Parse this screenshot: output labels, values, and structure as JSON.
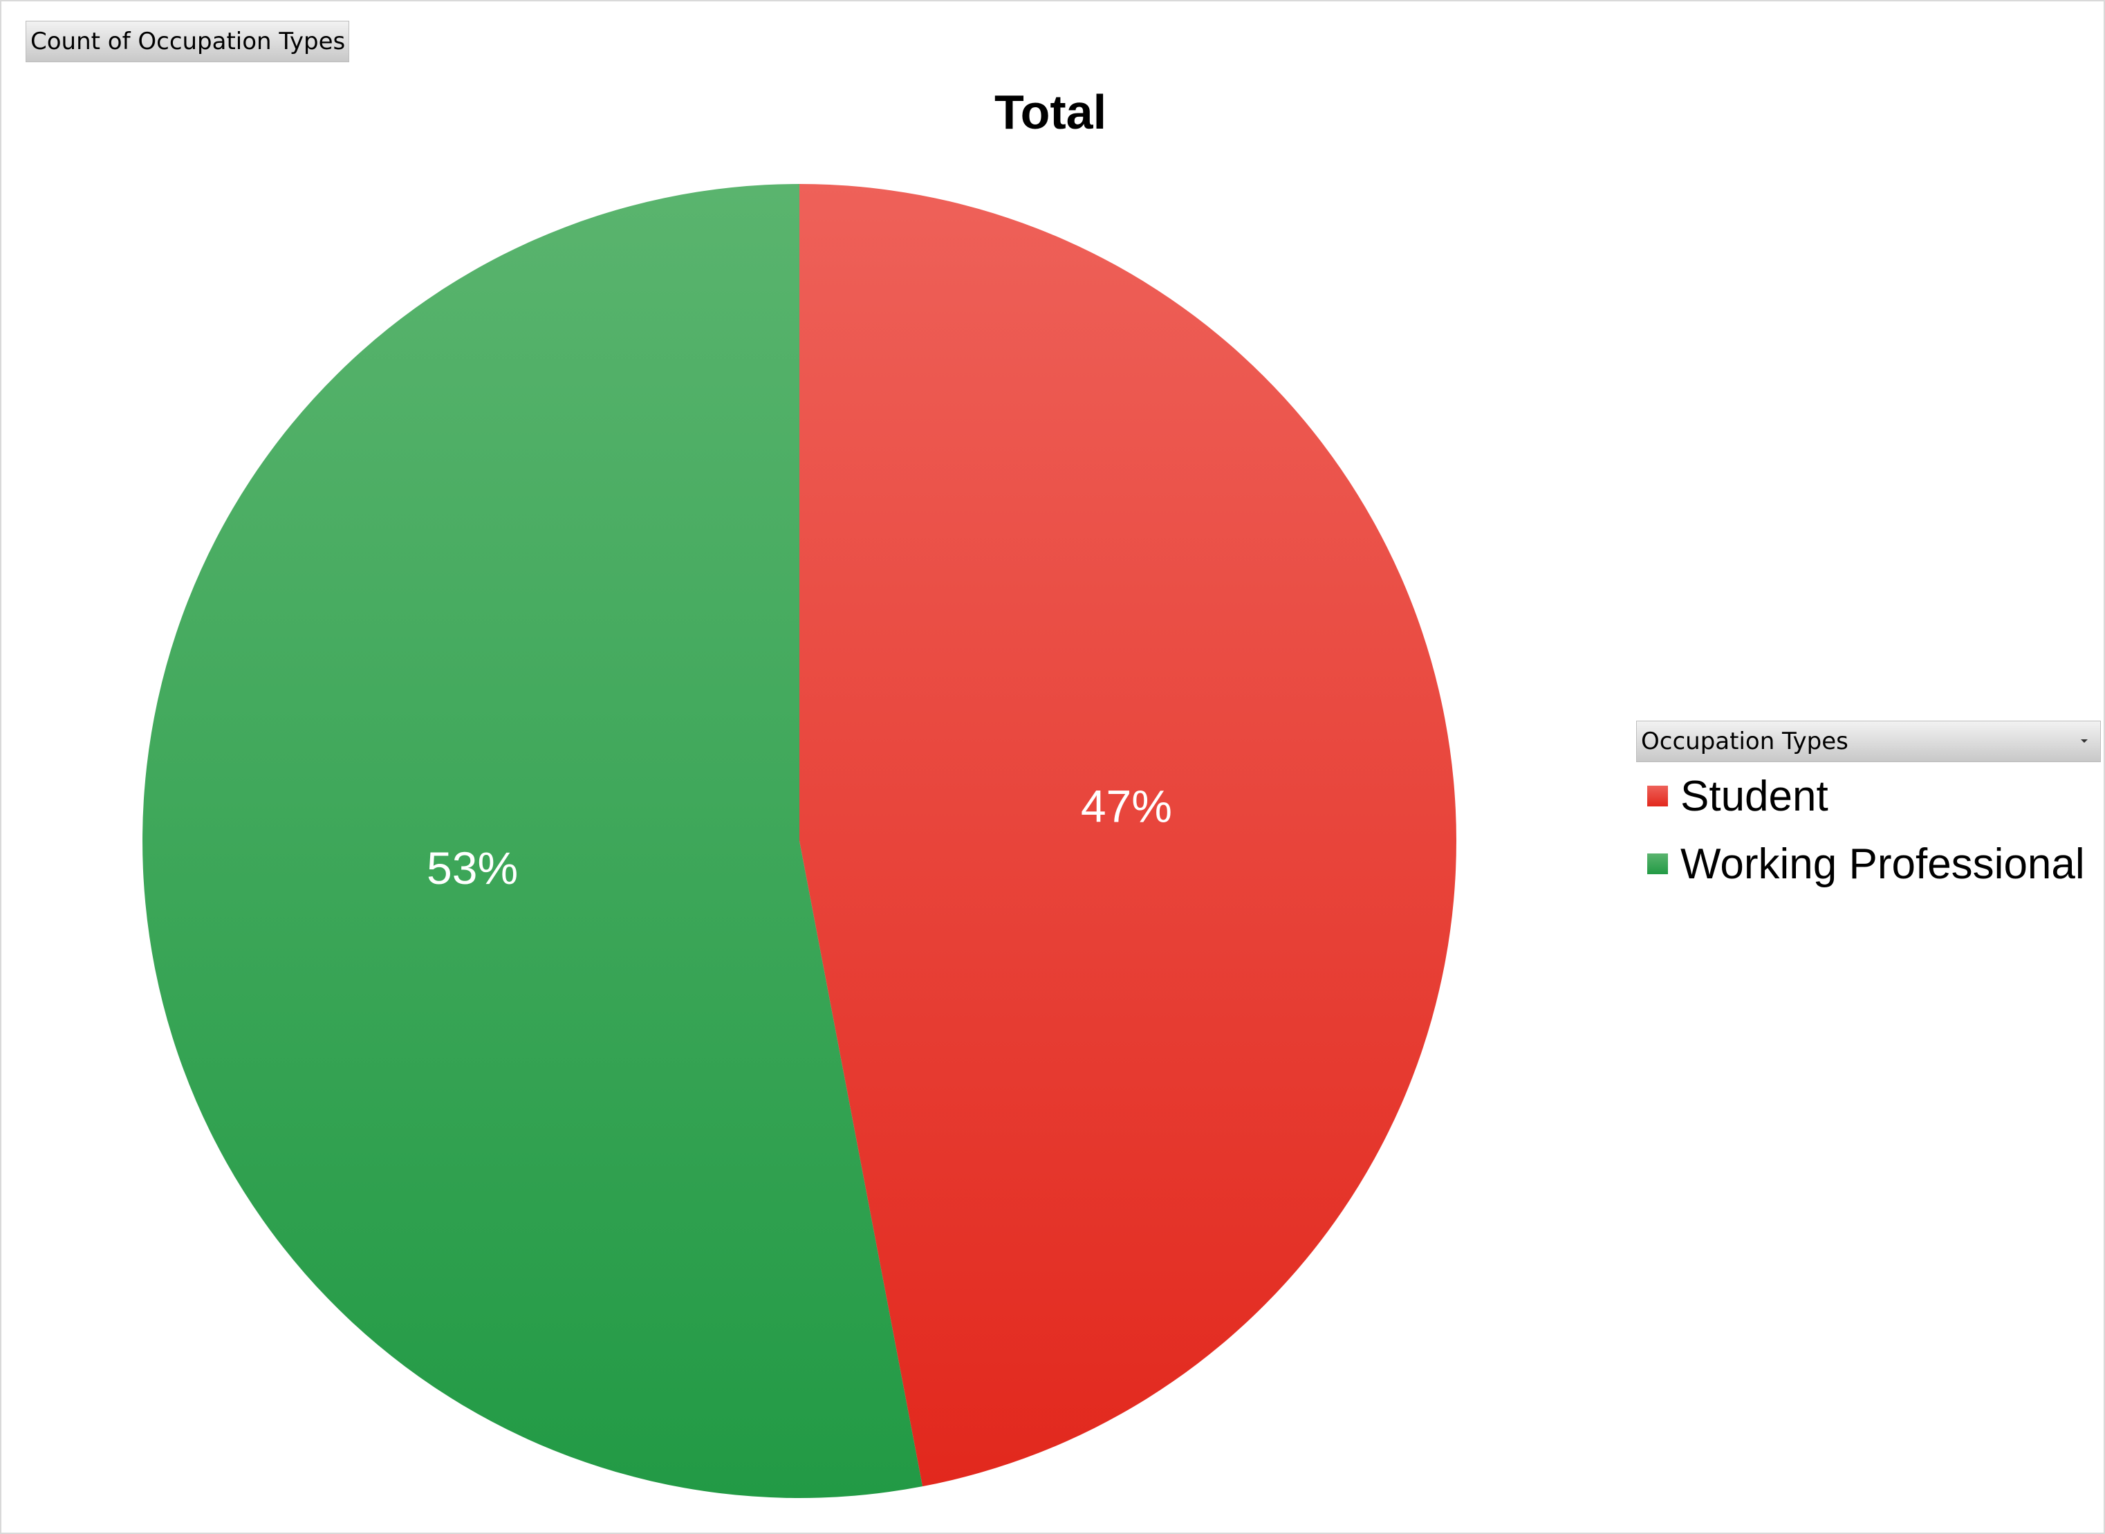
{
  "chart_data": {
    "type": "pie",
    "title": "Total",
    "value_field_label": "Count of Occupation Types",
    "legend_field_label": "Occupation Types",
    "legend_position": "right",
    "slices": [
      {
        "label": "Student",
        "percent": 47,
        "display": "47%",
        "color": "#ee3b2c"
      },
      {
        "label": "Working Professional",
        "percent": 53,
        "display": "53%",
        "color": "#2ea84e"
      }
    ]
  }
}
